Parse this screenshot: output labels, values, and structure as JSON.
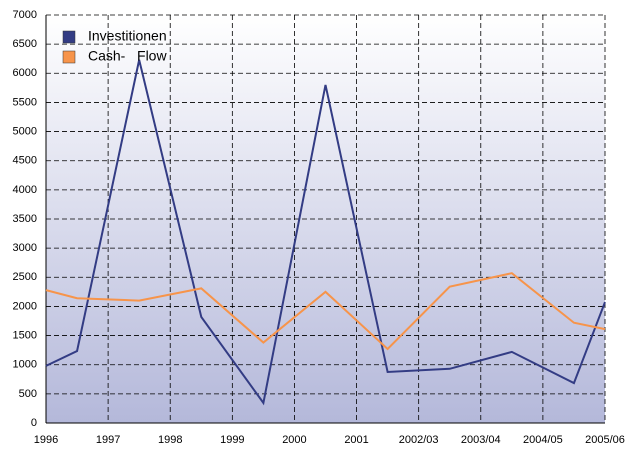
{
  "chart_data": {
    "type": "line",
    "x": [
      0,
      0.5,
      1.5,
      2.5,
      3.5,
      4.5,
      5.5,
      6.5,
      7.5,
      8.5,
      9
    ],
    "series": [
      {
        "name": "Investitionen",
        "color": "#333c84",
        "values": [
          980,
          1235,
          6230,
          1820,
          345,
          5800,
          875,
          930,
          1220,
          685,
          2075
        ]
      },
      {
        "name": "Cash-   Flow",
        "color": "#f7944a",
        "values": [
          2280,
          2140,
          2100,
          2310,
          1380,
          2250,
          1270,
          2340,
          2570,
          1720,
          1610
        ]
      }
    ],
    "xlim": [
      0,
      9
    ],
    "xticks": [
      {
        "value": 0,
        "label": "1996"
      },
      {
        "value": 1,
        "label": "1997"
      },
      {
        "value": 2,
        "label": "1998"
      },
      {
        "value": 3,
        "label": "1999"
      },
      {
        "value": 4,
        "label": "2000"
      },
      {
        "value": 5,
        "label": "2001"
      },
      {
        "value": 6,
        "label": "2002/03"
      },
      {
        "value": 7,
        "label": "2003/04"
      },
      {
        "value": 8,
        "label": "2004/05"
      },
      {
        "value": 9,
        "label": "2005/06"
      }
    ],
    "ylim": [
      0,
      7000
    ],
    "yticks": [
      0,
      500,
      1000,
      1500,
      2000,
      2500,
      3000,
      3500,
      4000,
      4500,
      5000,
      5500,
      6000,
      6500,
      7000
    ],
    "grid": true,
    "legend": "top-left"
  }
}
